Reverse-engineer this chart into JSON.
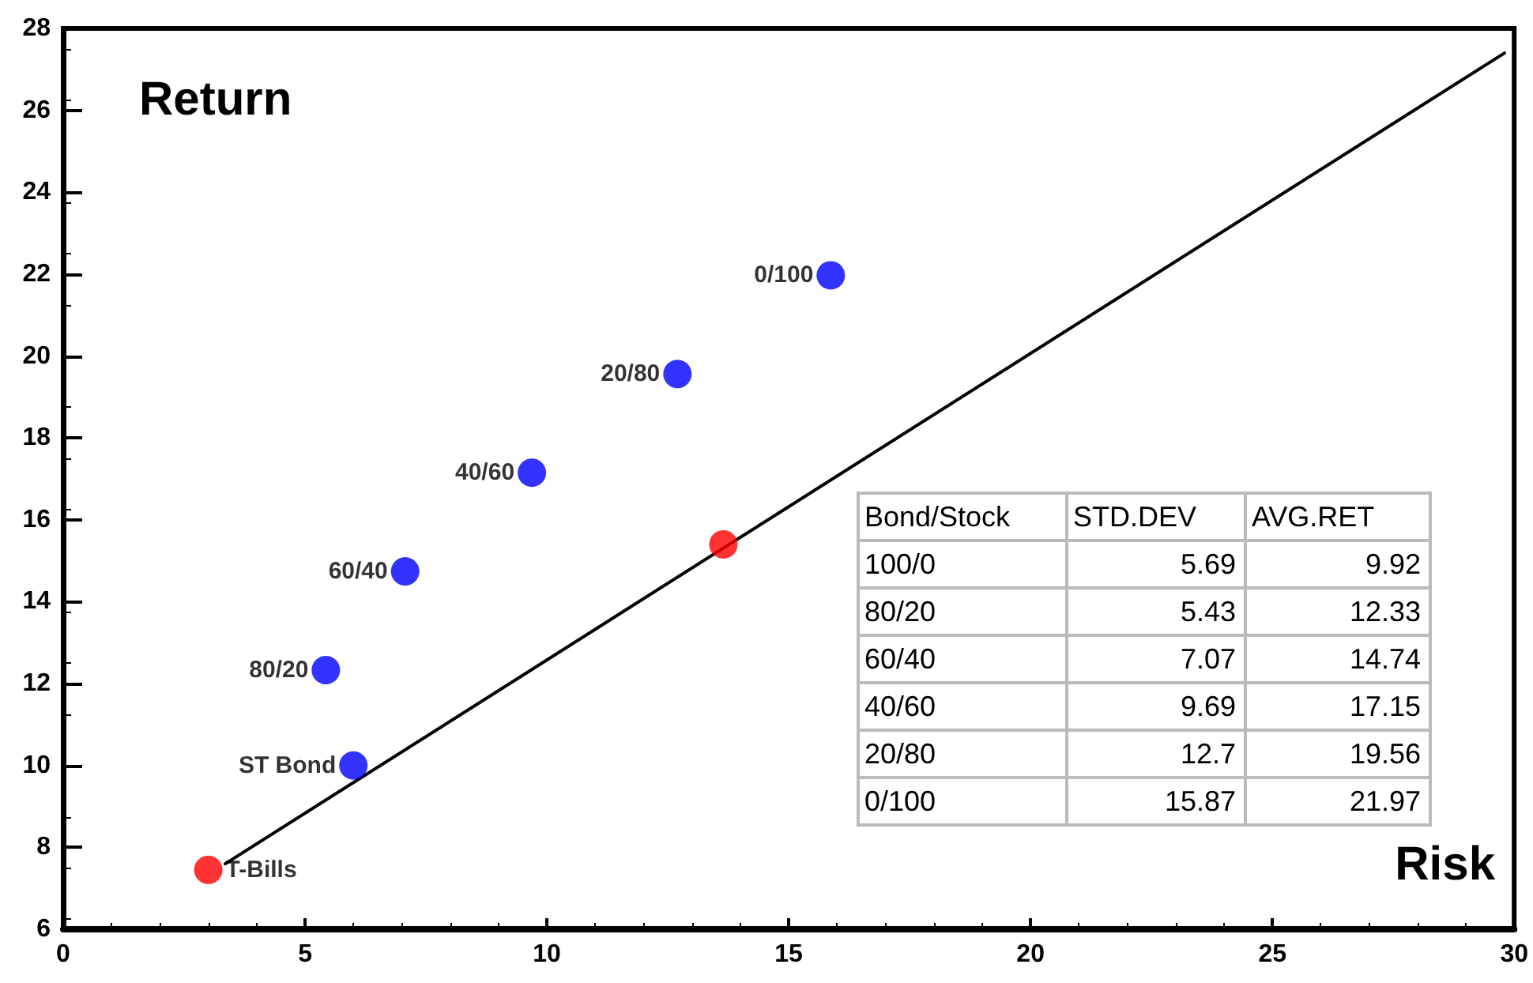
{
  "chart_data": {
    "type": "scatter",
    "xlabel": "Risk",
    "ylabel": "Return",
    "xlim": [
      0,
      30
    ],
    "xticks": [
      0,
      5,
      10,
      15,
      20,
      25,
      30
    ],
    "ylim": [
      6,
      28
    ],
    "yticks": [
      6,
      8,
      10,
      12,
      14,
      16,
      18,
      20,
      22,
      24,
      26,
      28
    ],
    "grid": false,
    "legend": false,
    "marker": "circle",
    "series": [
      {
        "type": "line",
        "color": "#000000",
        "marker": "none",
        "line_style": "solid",
        "x": [
          3.35,
          29.8
        ],
        "values": [
          7.6,
          27.4
        ]
      },
      {
        "name": "T-Bills",
        "color": "#ff0000",
        "x": [
          3.0
        ],
        "values": [
          7.45
        ]
      },
      {
        "color": "#ff0000",
        "x": [
          13.65
        ],
        "values": [
          15.4
        ]
      },
      {
        "name": "ST Bond",
        "color": "#0000ff",
        "x": [
          6.0
        ],
        "values": [
          10.0
        ]
      },
      {
        "name": "80/20",
        "color": "#0000ff",
        "x": [
          5.43
        ],
        "values": [
          12.33
        ]
      },
      {
        "name": "60/40",
        "color": "#0000ff",
        "x": [
          7.07
        ],
        "values": [
          14.74
        ]
      },
      {
        "name": "40/60",
        "color": "#0000ff",
        "x": [
          9.69
        ],
        "values": [
          17.15
        ]
      },
      {
        "name": "20/80",
        "color": "#0000ff",
        "x": [
          12.7
        ],
        "values": [
          19.56
        ]
      },
      {
        "name": "0/100",
        "color": "#0000ff",
        "x": [
          15.87
        ],
        "values": [
          21.97
        ]
      }
    ],
    "annotations": [
      "Bond/Stock",
      "STD.DEV",
      "AVG.RET",
      "100/0",
      "5.69",
      "9.92",
      "80/20",
      "5.43",
      "12.33",
      "60/40",
      "7.07",
      "14.74",
      "40/60",
      "9.69",
      "17.15",
      "20/80",
      "12.7",
      "19.56",
      "0/100",
      "15.87",
      "21.97"
    ]
  }
}
